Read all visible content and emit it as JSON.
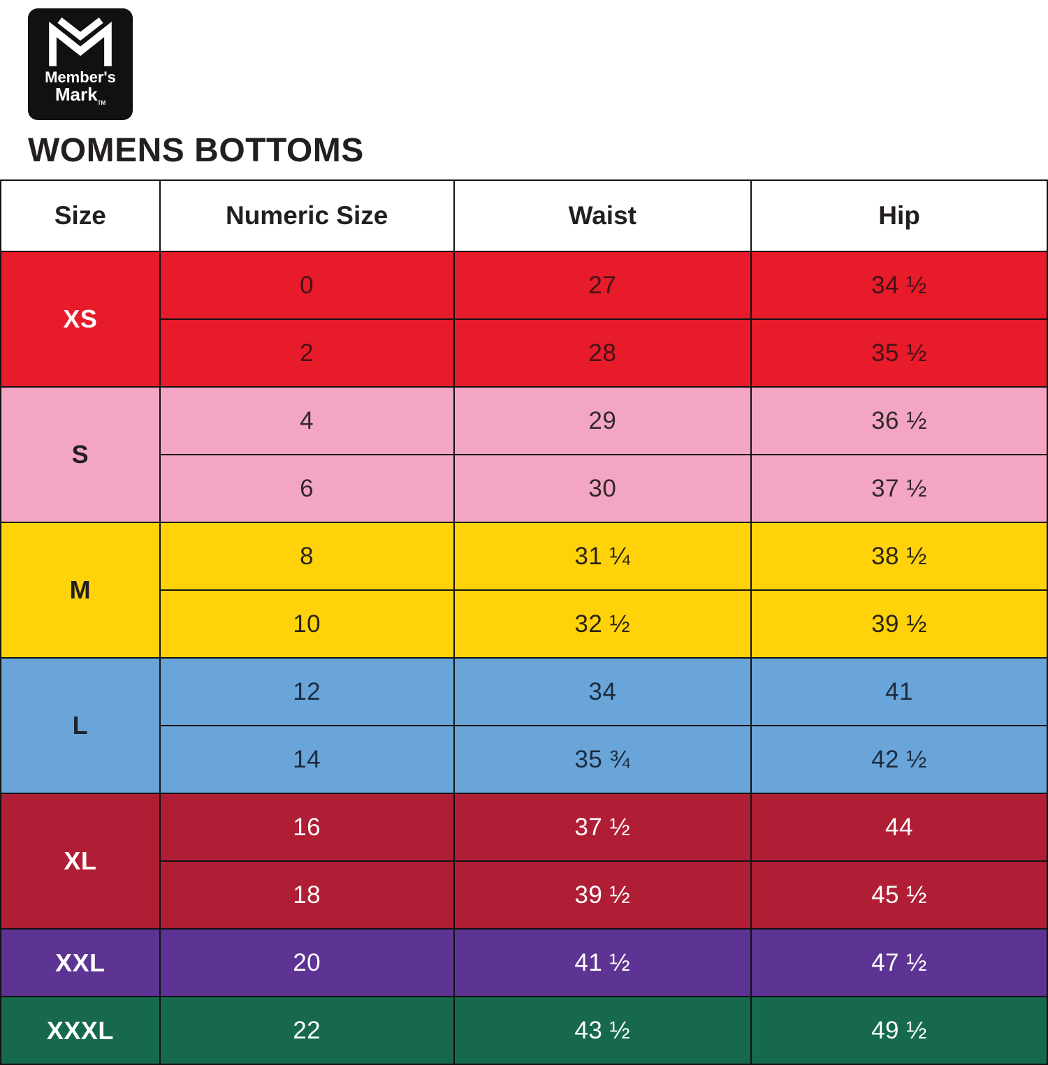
{
  "logo": {
    "line1": "Member's",
    "line2": "Mark",
    "tm": "TM"
  },
  "title": "WOMENS BOTTOMS",
  "table": {
    "headers": [
      "Size",
      "Numeric Size",
      "Waist",
      "Hip"
    ],
    "groups": [
      {
        "size": "XS",
        "bg": "#e71b29",
        "size_color": "#ffffff",
        "text_color": "#441218",
        "rows": [
          {
            "numeric": "0",
            "waist": "27",
            "hip": "34 ½"
          },
          {
            "numeric": "2",
            "waist": "28",
            "hip": "35 ½"
          }
        ]
      },
      {
        "size": "S",
        "bg": "#f3a6c3",
        "size_color": "#231f20",
        "text_color": "#33272b",
        "rows": [
          {
            "numeric": "4",
            "waist": "29",
            "hip": "36 ½"
          },
          {
            "numeric": "6",
            "waist": "30",
            "hip": "37 ½"
          }
        ]
      },
      {
        "size": "M",
        "bg": "#ffd20a",
        "size_color": "#231f20",
        "text_color": "#2b2419",
        "rows": [
          {
            "numeric": "8",
            "waist": "31 ¼",
            "hip": "38 ½"
          },
          {
            "numeric": "10",
            "waist": "32 ½",
            "hip": "39 ½"
          }
        ]
      },
      {
        "size": "L",
        "bg": "#69a5d9",
        "size_color": "#1d2430",
        "text_color": "#1d2a3d",
        "rows": [
          {
            "numeric": "12",
            "waist": "34",
            "hip": "41"
          },
          {
            "numeric": "14",
            "waist": "35 ¾",
            "hip": "42 ½"
          }
        ]
      },
      {
        "size": "XL",
        "bg": "#b01e35",
        "size_color": "#ffffff",
        "text_color": "#ffffff",
        "rows": [
          {
            "numeric": "16",
            "waist": "37 ½",
            "hip": "44"
          },
          {
            "numeric": "18",
            "waist": "39 ½",
            "hip": "45 ½"
          }
        ]
      },
      {
        "size": "XXL",
        "bg": "#5d3493",
        "size_color": "#ffffff",
        "text_color": "#ffffff",
        "rows": [
          {
            "numeric": "20",
            "waist": "41 ½",
            "hip": "47 ½"
          }
        ]
      },
      {
        "size": "XXXL",
        "bg": "#17694d",
        "size_color": "#ffffff",
        "text_color": "#ffffff",
        "rows": [
          {
            "numeric": "22",
            "waist": "43 ½",
            "hip": "49 ½"
          }
        ]
      }
    ]
  },
  "chart_data": {
    "type": "table",
    "title": "WOMENS BOTTOMS",
    "columns": [
      "Size",
      "Numeric Size",
      "Waist",
      "Hip"
    ],
    "rows": [
      [
        "XS",
        "0",
        "27",
        "34 1/2"
      ],
      [
        "XS",
        "2",
        "28",
        "35 1/2"
      ],
      [
        "S",
        "4",
        "29",
        "36 1/2"
      ],
      [
        "S",
        "6",
        "30",
        "37 1/2"
      ],
      [
        "M",
        "8",
        "31 1/4",
        "38 1/2"
      ],
      [
        "M",
        "10",
        "32 1/2",
        "39 1/2"
      ],
      [
        "L",
        "12",
        "34",
        "41"
      ],
      [
        "L",
        "14",
        "35 3/4",
        "42 1/2"
      ],
      [
        "XL",
        "16",
        "37 1/2",
        "44"
      ],
      [
        "XL",
        "18",
        "39 1/2",
        "45 1/2"
      ],
      [
        "XXL",
        "20",
        "41 1/2",
        "47 1/2"
      ],
      [
        "XXXL",
        "22",
        "43 1/2",
        "49 1/2"
      ]
    ]
  }
}
